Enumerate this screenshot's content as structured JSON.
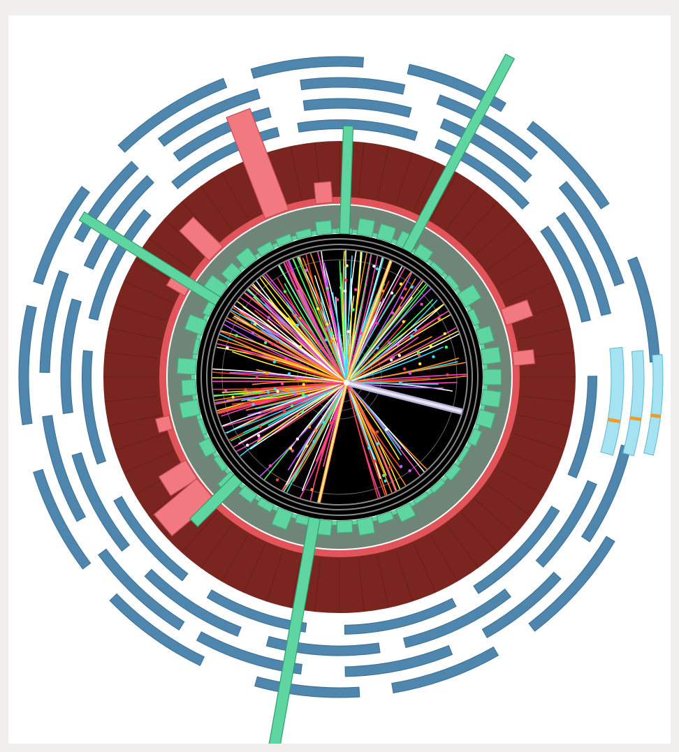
{
  "image": {
    "subject": "collider-event-display",
    "palette": {
      "background": "#ffffff",
      "page_border": "#f1efed",
      "inner_detector": "#000000",
      "support_rings": "#8a8a8a",
      "em_calorimeter": "#6f8577",
      "em_deposits": "#5fd6a2",
      "hadronic_calorimeter": "#7b2520",
      "hadronic_edge": "#e0545a",
      "hadronic_deposits": "#f2797f",
      "muon_chambers": "#4e86ad",
      "muon_chambers_hit": "#a6e3f2",
      "muon_hit_marks": "#f29a2a",
      "jet_lines": "#5fd6a2",
      "electron_track": "#ffe9a0",
      "muon_track": "#e9e3f5"
    },
    "track_colors": [
      "#ff4040",
      "#ffee33",
      "#c45cff",
      "#33ddff",
      "#44ff66",
      "#ff8c1a",
      "#ffffff",
      "#ff44bb"
    ]
  }
}
